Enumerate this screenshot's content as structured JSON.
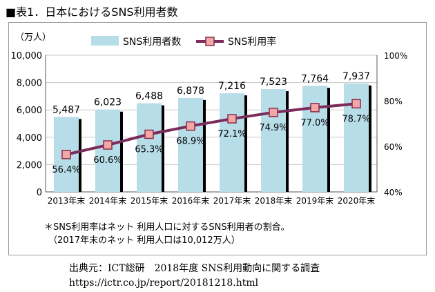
{
  "title": "■表1．日本におけるSNS利用者数",
  "chart_data": {
    "type": "bar",
    "categories": [
      "2013年末",
      "2014年末",
      "2015年末",
      "2016年末",
      "2017年末",
      "2018年末",
      "2019年末",
      "2020年末"
    ],
    "series": [
      {
        "name": "SNS利用者数",
        "type": "bar",
        "axis": "left",
        "color": "#b7dde8",
        "values": [
          5487,
          6023,
          6488,
          6878,
          7216,
          7523,
          7764,
          7937
        ],
        "labels": [
          "5,487",
          "6,023",
          "6,488",
          "6,878",
          "7,216",
          "7,523",
          "7,764",
          "7,937"
        ]
      },
      {
        "name": "SNS利用率",
        "type": "line",
        "axis": "right",
        "color": "#7b2c5b",
        "marker_color": "#f2a7a7",
        "values": [
          56.4,
          60.6,
          65.3,
          68.9,
          72.1,
          74.9,
          77.0,
          78.7
        ],
        "labels": [
          "56.4%",
          "60.6%",
          "65.3%",
          "68.9%",
          "72.1%",
          "74.9%",
          "77.0%",
          "78.7%"
        ]
      }
    ],
    "ylabel": "（万人）",
    "ylim": [
      0,
      10000
    ],
    "yticks": [
      "0",
      "2,000",
      "4,000",
      "6,000",
      "8,000",
      "10,000"
    ],
    "y2lim": [
      40,
      100
    ],
    "y2ticks": [
      "40%",
      "60%",
      "80%",
      "100%"
    ],
    "legend": "top-center",
    "grid": true
  },
  "notes": [
    "＊SNS利用率はネット 利用人口に対するSNS利用者の割合。",
    "（2017年末のネット 利用人口は10,012万人）"
  ],
  "source": "出典元：ICT総研　2018年度 SNS利用動向に関する調査",
  "url": "https://ictr.co.jp/report/20181218.html"
}
